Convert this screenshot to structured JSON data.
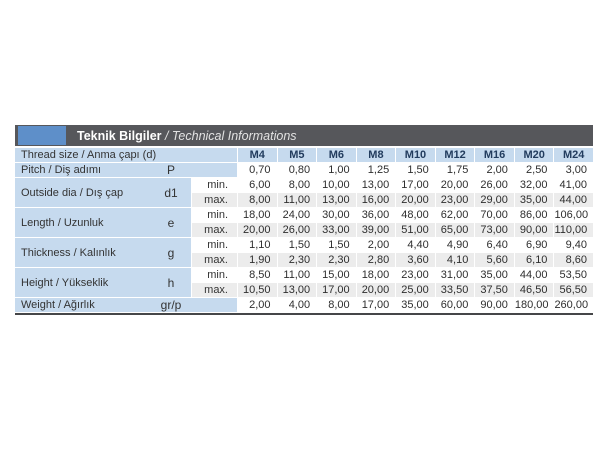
{
  "title": {
    "bold": "Teknik Bilgiler",
    "italic": " / Technical Informations"
  },
  "thread_row": {
    "label": "Thread size / Anma çapı (d)",
    "columns": [
      "M4",
      "M5",
      "M6",
      "M8",
      "M10",
      "M12",
      "M16",
      "M20",
      "M24"
    ]
  },
  "labels": {
    "min": "min.",
    "max": "max."
  },
  "groups": [
    {
      "type": "single",
      "label": "Pitch / Diş adımı",
      "symbol": "P",
      "values": [
        "0,70",
        "0,80",
        "1,00",
        "1,25",
        "1,50",
        "1,75",
        "2,00",
        "2,50",
        "3,00"
      ]
    },
    {
      "type": "minmax",
      "label": "Outside dia / Dış çap",
      "symbol": "d1",
      "min": [
        "6,00",
        "8,00",
        "10,00",
        "13,00",
        "17,00",
        "20,00",
        "26,00",
        "32,00",
        "41,00"
      ],
      "max": [
        "8,00",
        "11,00",
        "13,00",
        "16,00",
        "20,00",
        "23,00",
        "29,00",
        "35,00",
        "44,00"
      ]
    },
    {
      "type": "minmax",
      "label": "Length / Uzunluk",
      "symbol": "e",
      "min": [
        "18,00",
        "24,00",
        "30,00",
        "36,00",
        "48,00",
        "62,00",
        "70,00",
        "86,00",
        "106,00"
      ],
      "max": [
        "20,00",
        "26,00",
        "33,00",
        "39,00",
        "51,00",
        "65,00",
        "73,00",
        "90,00",
        "110,00"
      ]
    },
    {
      "type": "minmax",
      "label": "Thickness / Kalınlık",
      "symbol": "g",
      "min": [
        "1,10",
        "1,50",
        "1,50",
        "2,00",
        "4,40",
        "4,90",
        "6,40",
        "6,90",
        "9,40"
      ],
      "max": [
        "1,90",
        "2,30",
        "2,30",
        "2,80",
        "3,60",
        "4,10",
        "5,60",
        "6,10",
        "8,60"
      ]
    },
    {
      "type": "minmax",
      "label": "Height / Yükseklik",
      "symbol": "h",
      "min": [
        "8,50",
        "11,00",
        "15,00",
        "18,00",
        "23,00",
        "31,00",
        "35,00",
        "44,00",
        "53,50"
      ],
      "max": [
        "10,50",
        "13,00",
        "17,00",
        "20,00",
        "25,00",
        "33,50",
        "37,50",
        "46,50",
        "56,50"
      ]
    },
    {
      "type": "single",
      "label": "Weight / Ağırlık",
      "symbol": "gr/p",
      "values": [
        "2,00",
        "4,00",
        "8,00",
        "17,00",
        "35,00",
        "60,00",
        "90,00",
        "180,00",
        "260,00"
      ]
    }
  ],
  "colors": {
    "title_bar_bg": "#56575b",
    "accent_blue": "#5e8fc9",
    "cell_blue": "#c6daee",
    "max_row_bg": "#ececec",
    "column_header_text": "#223c5e",
    "bottom_border": "#454648"
  }
}
